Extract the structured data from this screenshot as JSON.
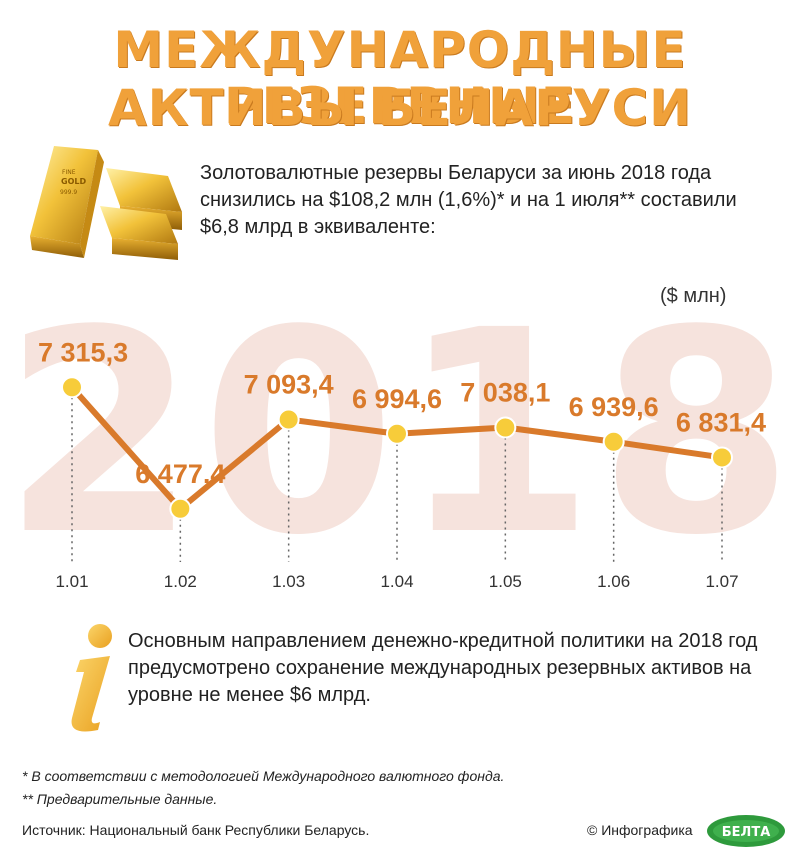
{
  "title": {
    "line1": "МЕЖДУНАРОДНЫЕ РЕЗЕРВНЫЕ",
    "line2": "АКТИВЫ БЕЛАРУСИ"
  },
  "intro": "Золотовалютные резервы Беларуси за июнь 2018 года снизились на $108,2 млн (1,6%)* и на 1 июля** составили $6,8 млрд в эквиваленте:",
  "gold_bar": {
    "stamp_line1": "FINE",
    "stamp_line2": "GOLD",
    "stamp_line3": "999.9"
  },
  "chart_data": {
    "type": "line",
    "unit_label": "($ млн)",
    "watermark": "2018",
    "categories": [
      "1.01",
      "1.02",
      "1.03",
      "1.04",
      "1.05",
      "1.06",
      "1.07"
    ],
    "values": [
      7315.3,
      6477.4,
      7093.4,
      6994.6,
      7038.1,
      6939.6,
      6831.4
    ],
    "value_labels": [
      "7 315,3",
      "6 477,4",
      "7 093,4",
      "6 994,6",
      "7 038,1",
      "6 939,6",
      "6 831,4"
    ],
    "ylim": [
      6400,
      7400
    ],
    "line_color": "#d97a2b",
    "marker_color": "#f7cc3a",
    "grid": false
  },
  "info_text": "Основным направлением денежно-кредитной политики на 2018 год предусмотрено сохранение международных резервных активов на уровне не менее $6 млрд.",
  "footnotes": [
    "* В соответствии с методологией Международного валютного фонда.",
    "** Предварительные данные."
  ],
  "source": "Источник: Национальный банк Республики Беларусь.",
  "credit": "© Инфографика",
  "logo_text": "БЕЛТА",
  "colors": {
    "title": "#f0a13a",
    "line": "#d97a2b",
    "marker": "#f7cc3a",
    "watermark": "#f6e3dd",
    "logo": "#2e9a3c"
  }
}
